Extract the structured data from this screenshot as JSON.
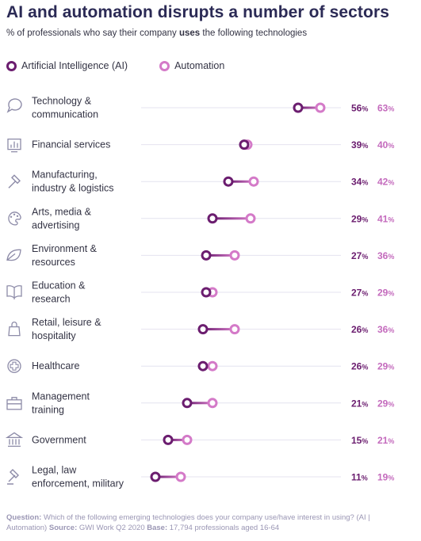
{
  "header": {
    "title": "AI and automation disrupts a number of sectors",
    "subtitle_pre": "% of professionals who say their company ",
    "subtitle_bold": "uses",
    "subtitle_post": " the following technologies"
  },
  "colors": {
    "ai": "#6b1d6f",
    "automation": "#d47ac8",
    "track": "#e4e3ef",
    "icon": "#8d8ba8"
  },
  "footer": {
    "question_label": "Question:",
    "question_text": " Which of the following emerging technologies does your company use/have interest in using? (AI | Automation) ",
    "source_label": "Source:",
    "source_text": " GWI Work Q2 2020 ",
    "base_label": "Base:",
    "base_text": " 17,794 professionals aged 16-64"
  },
  "chart_data": {
    "type": "dumbbell",
    "title": "AI and automation disrupts a number of sectors",
    "subtitle": "% of professionals who say their company uses the following technologies",
    "unit": "%",
    "series": [
      {
        "name": "Artificial Intelligence (AI)",
        "color": "#6b1d6f"
      },
      {
        "name": "Automation",
        "color": "#d47ac8"
      }
    ],
    "rows": [
      {
        "label": [
          "Technology &",
          "communication"
        ],
        "icon": "chat-bubble-icon",
        "ai": 56,
        "automation": 63
      },
      {
        "label": [
          "Financial services"
        ],
        "icon": "bar-chart-icon",
        "ai": 39,
        "automation": 40
      },
      {
        "label": [
          "Manufacturing,",
          "industry & logistics"
        ],
        "icon": "hammer-icon",
        "ai": 34,
        "automation": 42
      },
      {
        "label": [
          "Arts, media &",
          "advertising"
        ],
        "icon": "palette-icon",
        "ai": 29,
        "automation": 41
      },
      {
        "label": [
          "Environment &",
          "resources"
        ],
        "icon": "leaf-icon",
        "ai": 27,
        "automation": 36
      },
      {
        "label": [
          "Education &",
          "research"
        ],
        "icon": "book-icon",
        "ai": 27,
        "automation": 29
      },
      {
        "label": [
          "Retail, leisure &",
          "hospitality"
        ],
        "icon": "shopping-bag-icon",
        "ai": 26,
        "automation": 36
      },
      {
        "label": [
          "Healthcare"
        ],
        "icon": "medical-cross-icon",
        "ai": 26,
        "automation": 29
      },
      {
        "label": [
          "Management",
          "training"
        ],
        "icon": "briefcase-icon",
        "ai": 21,
        "automation": 29
      },
      {
        "label": [
          "Government"
        ],
        "icon": "government-building-icon",
        "ai": 15,
        "automation": 21
      },
      {
        "label": [
          "Legal, law",
          "enforcement, military"
        ],
        "icon": "gavel-icon",
        "ai": 11,
        "automation": 19
      }
    ]
  }
}
